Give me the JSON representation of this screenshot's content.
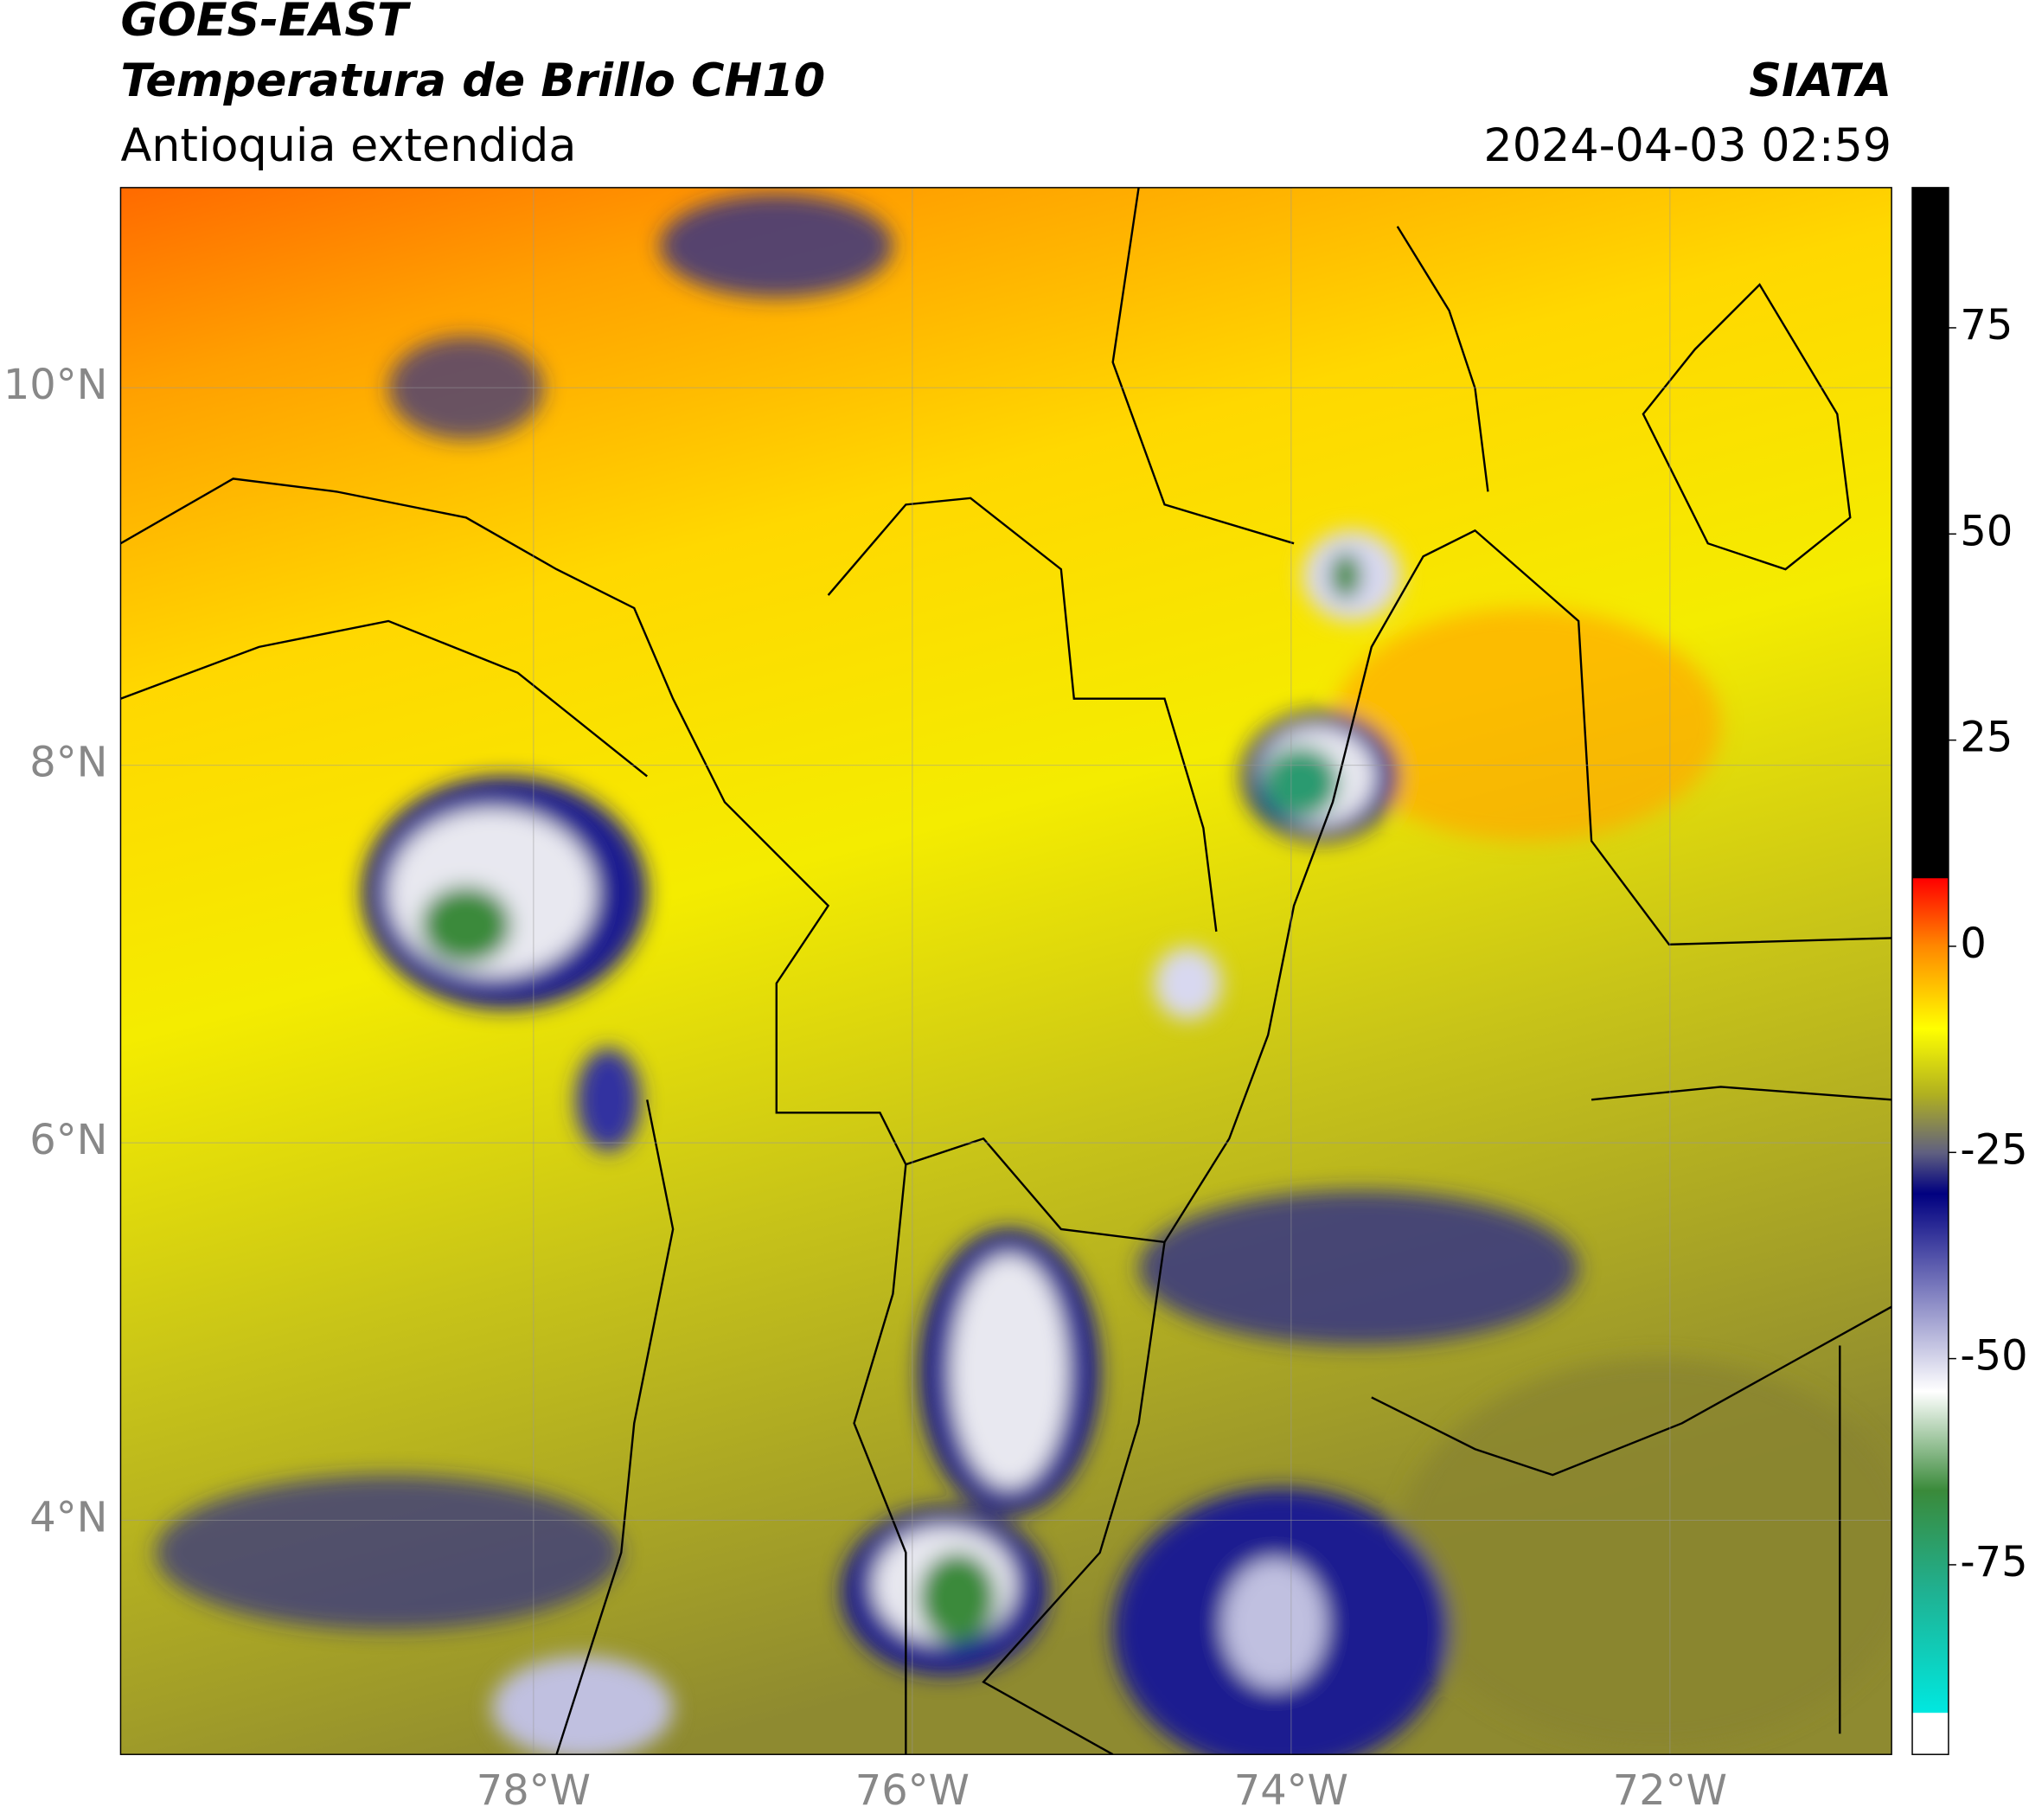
{
  "header": {
    "title": "GOES-EAST",
    "subtitle": "Temperatura de Brillo CH10",
    "region": "Antioquia extendida",
    "source": "SIATA",
    "datetime": "2024-04-03 02:59"
  },
  "map": {
    "xlim": [
      -80.18,
      -70.83
    ],
    "ylim": [
      2.76,
      11.06
    ],
    "xticks": [
      {
        "value": -78,
        "label": "78°W"
      },
      {
        "value": -76,
        "label": "76°W"
      },
      {
        "value": -74,
        "label": "74°W"
      },
      {
        "value": -72,
        "label": "72°W"
      }
    ],
    "yticks": [
      {
        "value": 10,
        "label": "10°N"
      },
      {
        "value": 8,
        "label": "8°N"
      },
      {
        "value": 6,
        "label": "6°N"
      },
      {
        "value": 4,
        "label": "4°N"
      }
    ],
    "grid": true
  },
  "colorbar": {
    "lim": [
      -98,
      92
    ],
    "ticks": [
      75,
      50,
      25,
      0,
      -25,
      -50,
      -75
    ],
    "stops": [
      {
        "value": -98,
        "color": "#ffffff"
      },
      {
        "value": -93,
        "color": "#ffffff"
      },
      {
        "value": -92.9,
        "color": "#00e8e0"
      },
      {
        "value": -78,
        "color": "#20b090"
      },
      {
        "value": -66,
        "color": "#3a8a3a"
      },
      {
        "value": -54,
        "color": "#ffffff"
      },
      {
        "value": -42,
        "color": "#8080c0"
      },
      {
        "value": -30,
        "color": "#000080"
      },
      {
        "value": -25,
        "color": "#606080"
      },
      {
        "value": -18,
        "color": "#b0b020"
      },
      {
        "value": -10,
        "color": "#ffff00"
      },
      {
        "value": 0,
        "color": "#ff8800"
      },
      {
        "value": 8.2,
        "color": "#ff0000"
      },
      {
        "value": 8.3,
        "color": "#000000"
      },
      {
        "value": 92,
        "color": "#000000"
      }
    ]
  }
}
